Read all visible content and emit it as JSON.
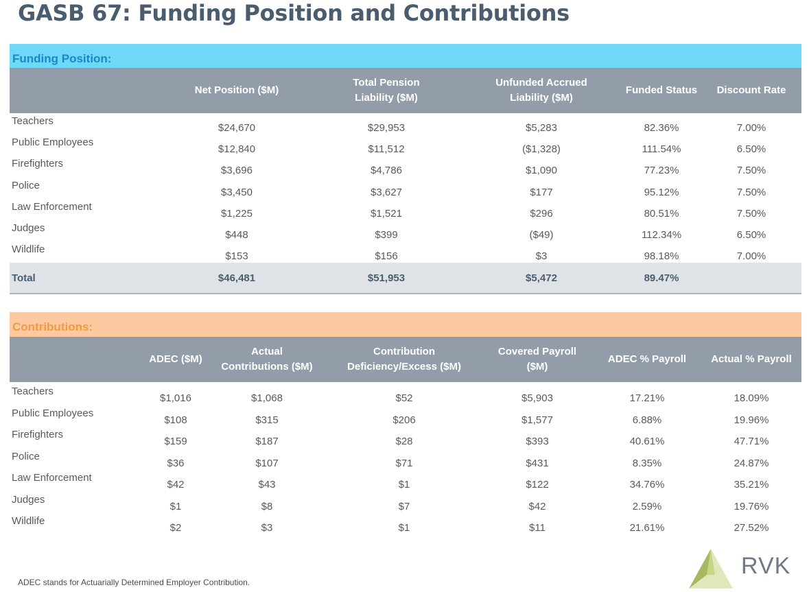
{
  "title": "GASB 67: Funding Position and Contributions",
  "funding": {
    "section_label": "Funding Position:",
    "headers": [
      "Net Position ($M)",
      "Total Pension\nLiability ($M)",
      "Unfunded Accrued\nLiability ($M)",
      "Funded Status",
      "Discount Rate"
    ],
    "rows": [
      {
        "label": "Teachers",
        "values": [
          "$24,670",
          "$29,953",
          "$5,283",
          "82.36%",
          "7.00%"
        ]
      },
      {
        "label": "Public Employees",
        "values": [
          "$12,840",
          "$11,512",
          "($1,328)",
          "111.54%",
          "6.50%"
        ]
      },
      {
        "label": "Firefighters",
        "values": [
          "$3,696",
          "$4,786",
          "$1,090",
          "77.23%",
          "7.50%"
        ]
      },
      {
        "label": "Police",
        "values": [
          "$3,450",
          "$3,627",
          "$177",
          "95.12%",
          "7.50%"
        ]
      },
      {
        "label": "Law Enforcement",
        "values": [
          "$1,225",
          "$1,521",
          "$296",
          "80.51%",
          "7.50%"
        ]
      },
      {
        "label": "Judges",
        "values": [
          "$448",
          "$399",
          "($49)",
          "112.34%",
          "6.50%"
        ]
      },
      {
        "label": "Wildlife",
        "values": [
          "$153",
          "$156",
          "$3",
          "98.18%",
          "7.00%"
        ]
      }
    ],
    "total": {
      "label": "Total",
      "values": [
        "$46,481",
        "$51,953",
        "$5,472",
        "89.47%",
        ""
      ]
    }
  },
  "contributions": {
    "section_label": "Contributions:",
    "headers": [
      "ADEC ($M)",
      "Actual\nContributions ($M)",
      "Contribution\nDeficiency/Excess ($M)",
      "Covered Payroll\n($M)",
      "ADEC % Payroll",
      "Actual % Payroll"
    ],
    "rows": [
      {
        "label": "Teachers",
        "values": [
          "$1,016",
          "$1,068",
          "$52",
          "$5,903",
          "17.21%",
          "18.09%"
        ]
      },
      {
        "label": "Public Employees",
        "values": [
          "$108",
          "$315",
          "$206",
          "$1,577",
          "6.88%",
          "19.96%"
        ]
      },
      {
        "label": "Firefighters",
        "values": [
          "$159",
          "$187",
          "$28",
          "$393",
          "40.61%",
          "47.71%"
        ]
      },
      {
        "label": "Police",
        "values": [
          "$36",
          "$107",
          "$71",
          "$431",
          "8.35%",
          "24.87%"
        ]
      },
      {
        "label": "Law Enforcement",
        "values": [
          "$42",
          "$43",
          "$1",
          "$122",
          "34.76%",
          "35.21%"
        ]
      },
      {
        "label": "Judges",
        "values": [
          "$1",
          "$8",
          "$7",
          "$42",
          "2.59%",
          "19.76%"
        ]
      },
      {
        "label": "Wildlife",
        "values": [
          "$2",
          "$3",
          "$1",
          "$11",
          "21.61%",
          "27.52%"
        ]
      }
    ]
  },
  "footnote": "ADEC stands for Actuarially Determined Employer Contribution.",
  "logo": {
    "text": "RVK",
    "icon": "rvk-triangle-logo-icon",
    "colors": {
      "light": "#dfe8b8",
      "mid": "#c5d68a",
      "dark": "#a6b95e"
    }
  }
}
